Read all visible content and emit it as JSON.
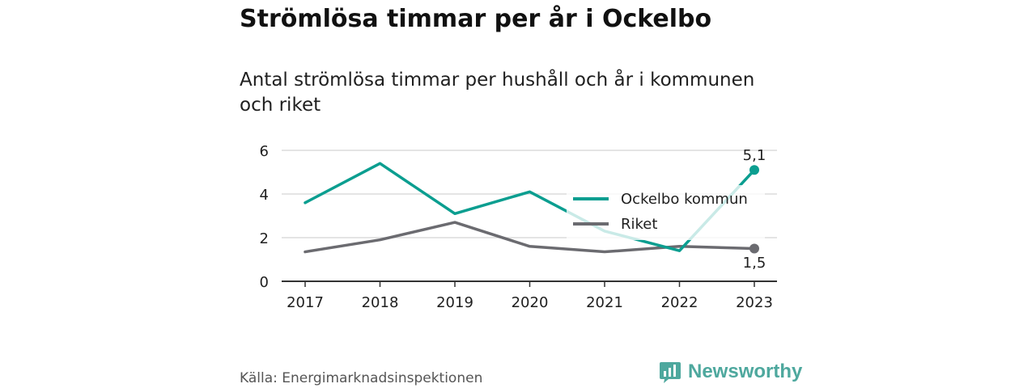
{
  "chart_data": {
    "type": "line",
    "title": "Strömlösa timmar per år i Ockelbo",
    "subtitle": "Antal strömlösa timmar per hushåll och år i kommunen och riket",
    "categories": [
      "2017",
      "2018",
      "2019",
      "2020",
      "2021",
      "2022",
      "2023"
    ],
    "y_ticks": [
      "0",
      "2",
      "4",
      "6"
    ],
    "ylim": [
      0,
      6
    ],
    "grid": true,
    "legend_position": "right",
    "series": [
      {
        "name": "Ockelbo kommun",
        "color": "#0b9e90",
        "values": [
          3.6,
          5.4,
          3.1,
          4.1,
          2.3,
          1.4,
          5.1
        ],
        "end_label": "5,1"
      },
      {
        "name": "Riket",
        "color": "#6b6b70",
        "values": [
          1.35,
          1.9,
          2.7,
          1.6,
          1.35,
          1.6,
          1.5
        ],
        "end_label": "1,5"
      }
    ]
  },
  "footer": {
    "source": "Källa: Energimarknadsinspektionen",
    "brand": "Newsworthy",
    "brand_color": "#4ea89e",
    "brand_icon": "bar-chart-bubble-icon"
  }
}
